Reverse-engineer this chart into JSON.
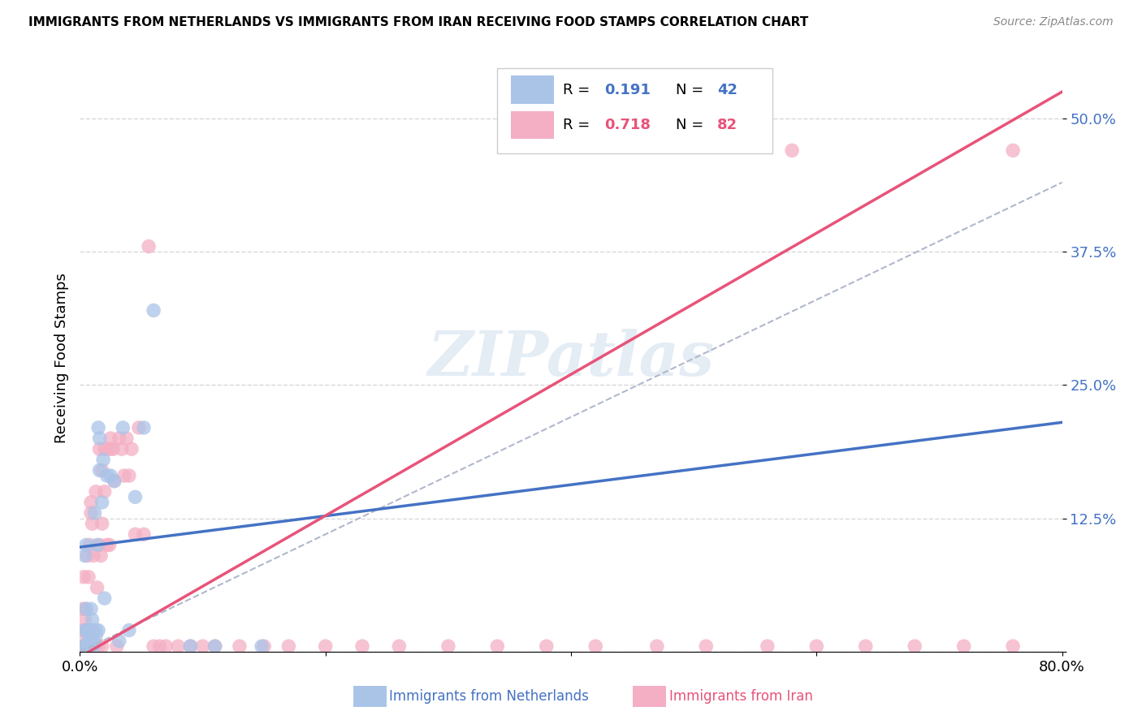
{
  "title": "IMMIGRANTS FROM NETHERLANDS VS IMMIGRANTS FROM IRAN RECEIVING FOOD STAMPS CORRELATION CHART",
  "source_text": "Source: ZipAtlas.com",
  "ylabel": "Receiving Food Stamps",
  "xlim": [
    0.0,
    0.8
  ],
  "ylim": [
    0.0,
    0.55
  ],
  "xticks": [
    0.0,
    0.2,
    0.4,
    0.6,
    0.8
  ],
  "xtick_labels": [
    "0.0%",
    "",
    "",
    "",
    "80.0%"
  ],
  "yticks": [
    0.0,
    0.125,
    0.25,
    0.375,
    0.5
  ],
  "ytick_labels": [
    "",
    "12.5%",
    "25.0%",
    "37.5%",
    "50.0%"
  ],
  "watermark": "ZIPatlas",
  "legend_r1": "0.191",
  "legend_n1": "42",
  "legend_r2": "0.718",
  "legend_n2": "82",
  "color_netherlands": "#aac4e8",
  "color_iran": "#f4afc4",
  "line_color_netherlands": "#4472C4",
  "line_color_iran": "#e8537a",
  "dashed_line_color": "#b0b8cc",
  "background_color": "#ffffff",
  "grid_color": "#d8d8d8",
  "nl_line_x0": 0.0,
  "nl_line_x1": 0.8,
  "nl_line_y0": 0.098,
  "nl_line_y1": 0.215,
  "ir_line_x0": 0.0,
  "ir_line_x1": 0.8,
  "ir_line_y0": -0.005,
  "ir_line_y1": 0.525,
  "dash_line_x0": 0.0,
  "dash_line_x1": 0.8,
  "dash_line_y0": 0.0,
  "dash_line_y1": 0.44,
  "nl_scatter_x": [
    0.003,
    0.004,
    0.004,
    0.005,
    0.005,
    0.005,
    0.006,
    0.007,
    0.007,
    0.007,
    0.008,
    0.008,
    0.009,
    0.009,
    0.01,
    0.01,
    0.01,
    0.011,
    0.011,
    0.012,
    0.013,
    0.013,
    0.014,
    0.015,
    0.015,
    0.016,
    0.016,
    0.018,
    0.019,
    0.02,
    0.022,
    0.025,
    0.028,
    0.032,
    0.035,
    0.04,
    0.045,
    0.052,
    0.06,
    0.09,
    0.11,
    0.148
  ],
  "nl_scatter_y": [
    0.005,
    0.02,
    0.09,
    0.04,
    0.1,
    0.005,
    0.02,
    0.005,
    0.01,
    0.02,
    0.005,
    0.01,
    0.02,
    0.04,
    0.005,
    0.01,
    0.03,
    0.005,
    0.01,
    0.13,
    0.015,
    0.02,
    0.1,
    0.02,
    0.21,
    0.17,
    0.2,
    0.14,
    0.18,
    0.05,
    0.165,
    0.165,
    0.16,
    0.01,
    0.21,
    0.02,
    0.145,
    0.21,
    0.32,
    0.005,
    0.005,
    0.005
  ],
  "ir_scatter_x": [
    0.002,
    0.002,
    0.003,
    0.003,
    0.003,
    0.004,
    0.004,
    0.005,
    0.005,
    0.005,
    0.006,
    0.006,
    0.006,
    0.007,
    0.007,
    0.007,
    0.008,
    0.008,
    0.008,
    0.009,
    0.009,
    0.01,
    0.01,
    0.01,
    0.011,
    0.012,
    0.013,
    0.014,
    0.015,
    0.016,
    0.017,
    0.018,
    0.018,
    0.02,
    0.022,
    0.022,
    0.024,
    0.025,
    0.027,
    0.028,
    0.03,
    0.032,
    0.034,
    0.036,
    0.038,
    0.04,
    0.042,
    0.045,
    0.048,
    0.052,
    0.056,
    0.06,
    0.065,
    0.07,
    0.08,
    0.09,
    0.1,
    0.11,
    0.13,
    0.15,
    0.17,
    0.2,
    0.23,
    0.26,
    0.3,
    0.34,
    0.38,
    0.42,
    0.47,
    0.51,
    0.56,
    0.6,
    0.64,
    0.68,
    0.72,
    0.76,
    0.76,
    0.58,
    0.025,
    0.02,
    0.018,
    0.016
  ],
  "ir_scatter_y": [
    0.01,
    0.04,
    0.005,
    0.02,
    0.07,
    0.005,
    0.03,
    0.005,
    0.02,
    0.04,
    0.005,
    0.02,
    0.09,
    0.005,
    0.02,
    0.07,
    0.005,
    0.01,
    0.1,
    0.13,
    0.14,
    0.005,
    0.02,
    0.12,
    0.09,
    0.005,
    0.15,
    0.06,
    0.005,
    0.19,
    0.09,
    0.005,
    0.17,
    0.19,
    0.1,
    0.19,
    0.1,
    0.2,
    0.19,
    0.16,
    0.005,
    0.2,
    0.19,
    0.165,
    0.2,
    0.165,
    0.19,
    0.11,
    0.21,
    0.11,
    0.38,
    0.005,
    0.005,
    0.005,
    0.005,
    0.005,
    0.005,
    0.005,
    0.005,
    0.005,
    0.005,
    0.005,
    0.005,
    0.005,
    0.005,
    0.005,
    0.005,
    0.005,
    0.005,
    0.005,
    0.005,
    0.005,
    0.005,
    0.005,
    0.005,
    0.005,
    0.47,
    0.47,
    0.19,
    0.15,
    0.12,
    0.1
  ]
}
